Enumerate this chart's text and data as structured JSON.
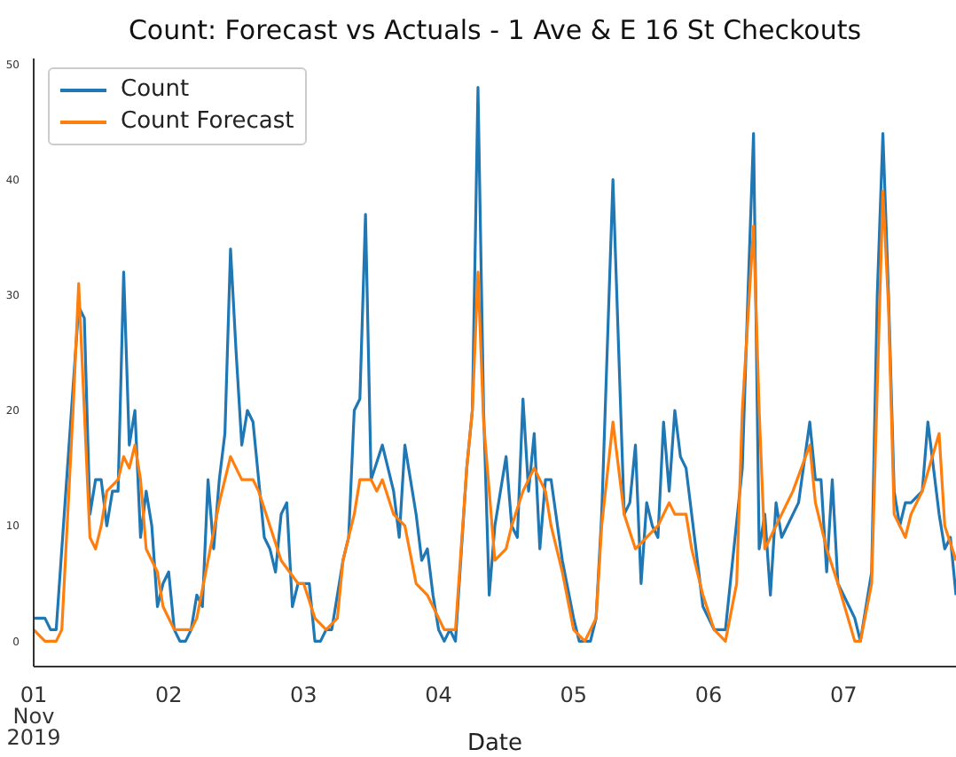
{
  "chart_data": {
    "type": "line",
    "title": "Count: Forecast vs Actuals - 1 Ave & E 16 St Checkouts",
    "xlabel": "Date",
    "legend": "top left",
    "grid": false,
    "xlim": [
      "2019-11-01T00:00",
      "2019-11-07T20:00"
    ],
    "xticks": [
      {
        "value": "2019-11-01",
        "label": "01\nNov\n2019"
      },
      {
        "value": "2019-11-02",
        "label": "02"
      },
      {
        "value": "2019-11-03",
        "label": "03"
      },
      {
        "value": "2019-11-04",
        "label": "04"
      },
      {
        "value": "2019-11-05",
        "label": "05"
      },
      {
        "value": "2019-11-06",
        "label": "06"
      },
      {
        "value": "2019-11-07",
        "label": "07"
      }
    ],
    "ylim": [
      -2.2,
      50.5
    ],
    "yticks": [
      0,
      10,
      20,
      30,
      40,
      50
    ],
    "series": [
      {
        "name": "Count",
        "color": "#1f77b4",
        "x": [
          "2019-11-01T00:00",
          "2019-11-01T02:00",
          "2019-11-01T03:00",
          "2019-11-01T04:00",
          "2019-11-01T08:00",
          "2019-11-01T09:00",
          "2019-11-01T10:00",
          "2019-11-01T11:00",
          "2019-11-01T12:00",
          "2019-11-01T13:00",
          "2019-11-01T14:00",
          "2019-11-01T15:00",
          "2019-11-01T16:00",
          "2019-11-01T17:00",
          "2019-11-01T18:00",
          "2019-11-01T19:00",
          "2019-11-01T20:00",
          "2019-11-01T21:00",
          "2019-11-01T22:00",
          "2019-11-01T23:00",
          "2019-11-02T00:00",
          "2019-11-02T01:00",
          "2019-11-02T02:00",
          "2019-11-02T03:00",
          "2019-11-02T04:00",
          "2019-11-02T05:00",
          "2019-11-02T06:00",
          "2019-11-02T07:00",
          "2019-11-02T08:00",
          "2019-11-02T09:00",
          "2019-11-02T10:00",
          "2019-11-02T11:00",
          "2019-11-02T12:00",
          "2019-11-02T13:00",
          "2019-11-02T14:00",
          "2019-11-02T15:00",
          "2019-11-02T16:00",
          "2019-11-02T17:00",
          "2019-11-02T18:00",
          "2019-11-02T19:00",
          "2019-11-02T20:00",
          "2019-11-02T21:00",
          "2019-11-02T22:00",
          "2019-11-02T23:00",
          "2019-11-03T00:00",
          "2019-11-03T01:00",
          "2019-11-03T02:00",
          "2019-11-03T03:00",
          "2019-11-03T04:00",
          "2019-11-03T05:00",
          "2019-11-03T07:00",
          "2019-11-03T08:00",
          "2019-11-03T09:00",
          "2019-11-03T10:00",
          "2019-11-03T11:00",
          "2019-11-03T12:00",
          "2019-11-03T14:00",
          "2019-11-03T16:00",
          "2019-11-03T17:00",
          "2019-11-03T18:00",
          "2019-11-03T20:00",
          "2019-11-03T21:00",
          "2019-11-03T22:00",
          "2019-11-03T23:00",
          "2019-11-04T00:00",
          "2019-11-04T01:00",
          "2019-11-04T02:00",
          "2019-11-04T03:00",
          "2019-11-04T05:00",
          "2019-11-04T06:00",
          "2019-11-04T07:00",
          "2019-11-04T08:00",
          "2019-11-04T09:00",
          "2019-11-04T10:00",
          "2019-11-04T12:00",
          "2019-11-04T13:00",
          "2019-11-04T14:00",
          "2019-11-04T15:00",
          "2019-11-04T16:00",
          "2019-11-04T17:00",
          "2019-11-04T18:00",
          "2019-11-04T19:00",
          "2019-11-04T20:00",
          "2019-11-04T22:00",
          "2019-11-05T00:00",
          "2019-11-05T01:00",
          "2019-11-05T03:00",
          "2019-11-05T04:00",
          "2019-11-05T05:00",
          "2019-11-05T07:00",
          "2019-11-05T09:00",
          "2019-11-05T10:00",
          "2019-11-05T11:00",
          "2019-11-05T12:00",
          "2019-11-05T13:00",
          "2019-11-05T14:00",
          "2019-11-05T15:00",
          "2019-11-05T16:00",
          "2019-11-05T17:00",
          "2019-11-05T18:00",
          "2019-11-05T19:00",
          "2019-11-05T20:00",
          "2019-11-05T22:00",
          "2019-11-05T23:00",
          "2019-11-06T01:00",
          "2019-11-06T03:00",
          "2019-11-06T06:00",
          "2019-11-06T07:00",
          "2019-11-06T08:00",
          "2019-11-06T09:00",
          "2019-11-06T10:00",
          "2019-11-06T11:00",
          "2019-11-06T12:00",
          "2019-11-06T13:00",
          "2019-11-06T14:00",
          "2019-11-06T16:00",
          "2019-11-06T18:00",
          "2019-11-06T19:00",
          "2019-11-06T20:00",
          "2019-11-06T21:00",
          "2019-11-06T22:00",
          "2019-11-06T23:00",
          "2019-11-07T01:00",
          "2019-11-07T02:00",
          "2019-11-07T03:00",
          "2019-11-07T05:00",
          "2019-11-07T06:00",
          "2019-11-07T07:00",
          "2019-11-07T08:00",
          "2019-11-07T09:00",
          "2019-11-07T10:00",
          "2019-11-07T11:00",
          "2019-11-07T12:00",
          "2019-11-07T14:00",
          "2019-11-07T15:00",
          "2019-11-07T16:00",
          "2019-11-07T17:00",
          "2019-11-07T18:00",
          "2019-11-07T19:00",
          "2019-11-07T20:00"
        ],
        "values": [
          2,
          2,
          1,
          1,
          29,
          28,
          11,
          14,
          14,
          10,
          13,
          13,
          32,
          17,
          20,
          9,
          13,
          10,
          3,
          5,
          6,
          1,
          0,
          0,
          1,
          4,
          3,
          14,
          8,
          14,
          18,
          34,
          25,
          17,
          20,
          19,
          14,
          9,
          8,
          6,
          11,
          12,
          3,
          5,
          5,
          5,
          0,
          0,
          1,
          1,
          7,
          9,
          20,
          21,
          37,
          14,
          17,
          13,
          9,
          17,
          11,
          7,
          8,
          4,
          1,
          0,
          1,
          0,
          15,
          20,
          48,
          20,
          4,
          10,
          16,
          10,
          9,
          21,
          13,
          18,
          8,
          14,
          14,
          7,
          2,
          0,
          0,
          2,
          11,
          40,
          11,
          12,
          17,
          5,
          12,
          10,
          9,
          19,
          13,
          20,
          16,
          15,
          7,
          3,
          1,
          1,
          15,
          30,
          44,
          8,
          11,
          4,
          12,
          9,
          10,
          12,
          19,
          14,
          14,
          6,
          14,
          5,
          3,
          2,
          0,
          6,
          30,
          44,
          30,
          13,
          10,
          12,
          12,
          13,
          19,
          15,
          11,
          8,
          9,
          4
        ]
      },
      {
        "name": "Count Forecast",
        "color": "#ff7f0e",
        "x": [
          "2019-11-01T00:00",
          "2019-11-01T02:00",
          "2019-11-01T04:00",
          "2019-11-01T05:00",
          "2019-11-01T07:00",
          "2019-11-01T08:00",
          "2019-11-01T09:00",
          "2019-11-01T10:00",
          "2019-11-01T11:00",
          "2019-11-01T12:00",
          "2019-11-01T13:00",
          "2019-11-01T15:00",
          "2019-11-01T16:00",
          "2019-11-01T17:00",
          "2019-11-01T18:00",
          "2019-11-01T19:00",
          "2019-11-01T20:00",
          "2019-11-01T22:00",
          "2019-11-01T23:00",
          "2019-11-02T01:00",
          "2019-11-02T04:00",
          "2019-11-02T05:00",
          "2019-11-02T07:00",
          "2019-11-02T09:00",
          "2019-11-02T11:00",
          "2019-11-02T12:00",
          "2019-11-02T13:00",
          "2019-11-02T14:00",
          "2019-11-02T15:00",
          "2019-11-02T16:00",
          "2019-11-02T18:00",
          "2019-11-02T20:00",
          "2019-11-02T23:00",
          "2019-11-03T00:00",
          "2019-11-03T02:00",
          "2019-11-03T04:00",
          "2019-11-03T06:00",
          "2019-11-03T07:00",
          "2019-11-03T09:00",
          "2019-11-03T10:00",
          "2019-11-03T12:00",
          "2019-11-03T13:00",
          "2019-11-03T14:00",
          "2019-11-03T16:00",
          "2019-11-03T18:00",
          "2019-11-03T20:00",
          "2019-11-03T22:00",
          "2019-11-04T01:00",
          "2019-11-04T03:00",
          "2019-11-04T05:00",
          "2019-11-04T06:00",
          "2019-11-04T07:00",
          "2019-11-04T08:00",
          "2019-11-04T10:00",
          "2019-11-04T12:00",
          "2019-11-04T13:00",
          "2019-11-04T15:00",
          "2019-11-04T17:00",
          "2019-11-04T19:00",
          "2019-11-04T20:00",
          "2019-11-04T22:00",
          "2019-11-05T00:00",
          "2019-11-05T02:00",
          "2019-11-05T04:00",
          "2019-11-05T05:00",
          "2019-11-05T07:00",
          "2019-11-05T09:00",
          "2019-11-05T11:00",
          "2019-11-05T13:00",
          "2019-11-05T15:00",
          "2019-11-05T17:00",
          "2019-11-05T18:00",
          "2019-11-05T20:00",
          "2019-11-05T21:00",
          "2019-11-05T23:00",
          "2019-11-06T01:00",
          "2019-11-06T03:00",
          "2019-11-06T05:00",
          "2019-11-06T06:00",
          "2019-11-06T08:00",
          "2019-11-06T09:00",
          "2019-11-06T10:00",
          "2019-11-06T11:00",
          "2019-11-06T13:00",
          "2019-11-06T15:00",
          "2019-11-06T18:00",
          "2019-11-06T19:00",
          "2019-11-06T21:00",
          "2019-11-06T23:00",
          "2019-11-07T02:00",
          "2019-11-07T03:00",
          "2019-11-07T05:00",
          "2019-11-07T07:00",
          "2019-11-07T08:00",
          "2019-11-07T09:00",
          "2019-11-07T11:00",
          "2019-11-07T12:00",
          "2019-11-07T14:00",
          "2019-11-07T17:00",
          "2019-11-07T18:00",
          "2019-11-07T20:00"
        ],
        "values": [
          1,
          0,
          0,
          1,
          20,
          31,
          20,
          9,
          8,
          10,
          13,
          14,
          16,
          15,
          17,
          14,
          8,
          6,
          3,
          1,
          1,
          2,
          7,
          12,
          16,
          15,
          14,
          14,
          14,
          13,
          10,
          7,
          5,
          5,
          2,
          1,
          2,
          7,
          11,
          14,
          14,
          13,
          14,
          11,
          10,
          5,
          4,
          1,
          1,
          15,
          20,
          32,
          19,
          7,
          8,
          10,
          13,
          15,
          13,
          10,
          6,
          1,
          0,
          2,
          10,
          19,
          11,
          8,
          9,
          10,
          12,
          11,
          11,
          8,
          4,
          1,
          0,
          5,
          20,
          36,
          20,
          8,
          9,
          11,
          13,
          17,
          12,
          8,
          5,
          0,
          0,
          5,
          39,
          29,
          11,
          9,
          11,
          13,
          18,
          10,
          7
        ]
      }
    ]
  }
}
